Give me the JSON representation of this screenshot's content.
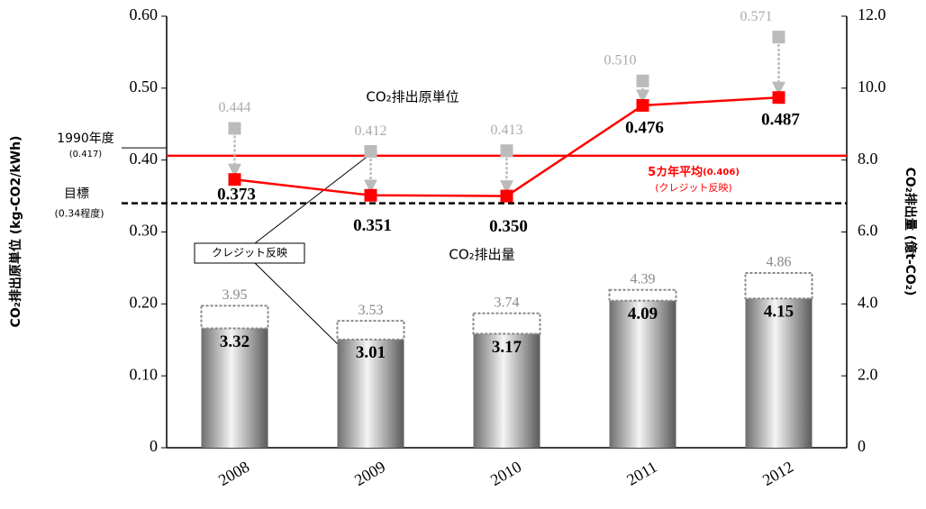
{
  "chart_data": {
    "type": "bar",
    "y_label": "CO₂排出原単位 (kg-CO2/kWh)",
    "y2_label": "CO₂排出量 (億t-CO₂)",
    "categories": [
      "2008",
      "2009",
      "2010",
      "2011",
      "2012"
    ],
    "ylim": [
      0,
      0.6
    ],
    "yticks": [
      0,
      {
        "value": 0.1,
        "label": "0.10"
      },
      {
        "value": 0.2,
        "label": "0.20"
      },
      {
        "value": 0.3,
        "label": "0.30"
      },
      {
        "value": 0.4,
        "label": "0.40"
      },
      {
        "value": 0.5,
        "label": "0.50"
      },
      {
        "value": 0.6,
        "label": "0.60"
      }
    ],
    "y2lim": [
      0,
      12
    ],
    "y2ticks": [
      0,
      {
        "value": 2,
        "label": "2.0"
      },
      {
        "value": 4,
        "label": "4.0"
      },
      {
        "value": 6,
        "label": "6.0"
      },
      {
        "value": 8,
        "label": "8.0"
      },
      {
        "value": 10,
        "label": "10.0"
      },
      {
        "value": 12,
        "label": "12.0"
      }
    ],
    "series": [
      {
        "name": "CO₂排出量",
        "type": "bar",
        "axis": "y2",
        "color": "#808080",
        "values": [
          3.32,
          3.01,
          3.17,
          4.09,
          4.15
        ]
      },
      {
        "type": "dashed-box",
        "axis": "y2",
        "color": "#888888",
        "values": [
          3.95,
          3.53,
          3.74,
          4.39,
          4.86
        ]
      },
      {
        "name": "CO₂排出原単位",
        "type": "line",
        "axis": "y",
        "color": "#ff0000",
        "values": [
          0.373,
          0.351,
          0.35,
          0.476,
          0.487
        ],
        "value_labels": [
          "0.373",
          "0.351",
          "0.350",
          "0.476",
          "0.487"
        ]
      },
      {
        "type": "marker",
        "axis": "y",
        "color": "#bbbbbb",
        "values": [
          0.444,
          0.412,
          0.413,
          0.51,
          0.571
        ],
        "value_labels": [
          "0.444",
          "0.412",
          "0.413",
          "0.510",
          "0.571"
        ]
      }
    ],
    "reference_lines": [
      {
        "label": "1990年度",
        "sublabel": "(0.417)",
        "value": 0.417,
        "color": "#000000",
        "style": "short"
      },
      {
        "label": "目標",
        "sublabel": "(0.34程度)",
        "value": 0.34,
        "color": "#000000",
        "style": "dashed"
      },
      {
        "label": "5カ年平均",
        "value_label": "(0.406)",
        "sublabel": "(クレジット反映)",
        "value": 0.406,
        "color": "#ff0000",
        "style": "solid"
      }
    ],
    "callout": "クレジット反映"
  }
}
